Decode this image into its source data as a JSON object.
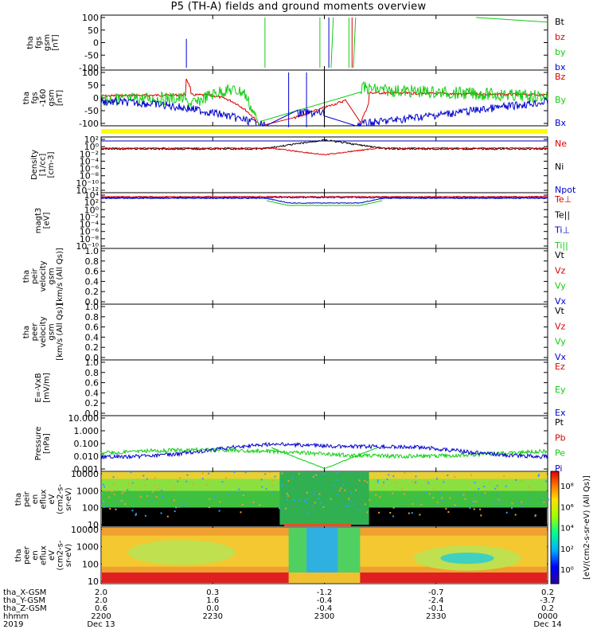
{
  "title": "P5 (TH-A) fields and ground moments overview",
  "chart_data": {
    "type": "line",
    "panels": [
      {
        "ylabel": [
          "tha",
          "fgs",
          "gsm",
          "[nT]"
        ],
        "ticks": [
          "100",
          "50",
          "0",
          "-50",
          "-100"
        ],
        "ylim": [
          -100,
          100
        ],
        "legend": [
          {
            "text": "Bt",
            "color": "#000000"
          },
          {
            "text": "bz",
            "color": "#dd0000"
          },
          {
            "text": "by",
            "color": "#11cc11"
          },
          {
            "text": "bx",
            "color": "#0000cc"
          }
        ]
      },
      {
        "ylabel": [
          "tha",
          "fgs",
          "-160",
          "gsm",
          "[nT]"
        ],
        "ticks": [
          "100",
          "50",
          "0",
          "-50",
          "-100"
        ],
        "ylim": [
          -120,
          120
        ],
        "legend": [
          {
            "text": "Bz",
            "color": "#dd0000"
          },
          {
            "text": "By",
            "color": "#11cc11"
          },
          {
            "text": "Bx",
            "color": "#0000cc"
          }
        ]
      },
      {
        "ylabel": [
          "Density",
          "[1/cc]",
          "[cm-3]"
        ],
        "ticks": [
          "10²",
          "10⁰",
          "10⁻²",
          "10⁻⁴",
          "10⁻⁶",
          "10⁻⁸",
          "10⁻¹⁰",
          "10⁻¹²"
        ],
        "legend": [
          {
            "text": "Ne",
            "color": "#dd0000"
          },
          {
            "text": "Ni",
            "color": "#000000"
          },
          {
            "text": "Npot",
            "color": "#0000cc"
          }
        ]
      },
      {
        "ylabel": [
          "magt3",
          "[eV]"
        ],
        "ticks": [
          "10⁴",
          "10²",
          "10⁰",
          "10⁻²",
          "10⁻⁴",
          "10⁻⁶",
          "10⁻⁸",
          "10⁻¹⁰"
        ],
        "legend": [
          {
            "text": "Te⊥",
            "color": "#dd0000"
          },
          {
            "text": "Te||",
            "color": "#000000"
          },
          {
            "text": "Ti⊥",
            "color": "#0000cc"
          },
          {
            "text": "Ti||",
            "color": "#11cc11"
          }
        ]
      },
      {
        "ylabel": [
          "tha",
          "peir",
          "velocity",
          "gsm",
          "[km/s (All Qs)]"
        ],
        "ticks": [
          "1.0",
          "0.8",
          "0.6",
          "0.4",
          "0.2",
          "0.0"
        ],
        "ylim": [
          0,
          1
        ],
        "legend": [
          {
            "text": "Vt",
            "color": "#000000"
          },
          {
            "text": "Vz",
            "color": "#dd0000"
          },
          {
            "text": "Vy",
            "color": "#11cc11"
          },
          {
            "text": "Vx",
            "color": "#0000cc"
          }
        ]
      },
      {
        "ylabel": [
          "tha",
          "peer",
          "velocity",
          "gsm",
          "[km/s (All Qs)]"
        ],
        "ticks": [
          "1.0",
          "0.8",
          "0.6",
          "0.4",
          "0.2",
          "0.0"
        ],
        "ylim": [
          0,
          1
        ],
        "legend": [
          {
            "text": "Vt",
            "color": "#000000"
          },
          {
            "text": "Vz",
            "color": "#dd0000"
          },
          {
            "text": "Vy",
            "color": "#11cc11"
          },
          {
            "text": "Vx",
            "color": "#0000cc"
          }
        ]
      },
      {
        "ylabel": [
          "E=-VxB",
          "[mV/m]"
        ],
        "ticks": [
          "1.0",
          "0.8",
          "0.6",
          "0.4",
          "0.2",
          "0.0"
        ],
        "ylim": [
          0,
          1
        ],
        "legend": [
          {
            "text": "Ez",
            "color": "#dd0000"
          },
          {
            "text": "Ey",
            "color": "#11cc11"
          },
          {
            "text": "Ex",
            "color": "#0000cc"
          }
        ]
      },
      {
        "ylabel": [
          "Pressure",
          "[nPa]"
        ],
        "ticks": [
          "10.000",
          "1.000",
          "0.100",
          "0.010",
          "0.001"
        ],
        "legend": [
          {
            "text": "Pt",
            "color": "#000000"
          },
          {
            "text": "Pb",
            "color": "#dd0000"
          },
          {
            "text": "Pe",
            "color": "#11cc11"
          },
          {
            "text": "Pi",
            "color": "#0000cc"
          }
        ]
      },
      {
        "ylabel": [
          "tha",
          "peir",
          "en",
          "eflux",
          "eV",
          "(cm2-s-",
          "sr-eV)"
        ],
        "ticks": [
          "10000",
          "1000",
          "100",
          "10"
        ]
      },
      {
        "ylabel": [
          "tha",
          "peer",
          "en",
          "eflux",
          "eV",
          "(cm2-s-",
          "sr-eV)"
        ],
        "ticks": [
          "10000",
          "1000",
          "100",
          "10"
        ]
      }
    ],
    "colorbar": {
      "label": "[eV/(cm2-s-sr-eV) (All Qs)]",
      "ticks": [
        "10⁸",
        "10⁶",
        "10⁴",
        "10²",
        "10⁰"
      ]
    },
    "xaxis": {
      "row_labels": [
        "tha_X-GSM",
        "tha_Y-GSM",
        "tha_Z-GSM",
        "hhmm",
        "2019"
      ],
      "columns": [
        {
          "values": [
            "2.0",
            "2.0",
            "0.6",
            "2200",
            "Dec 13"
          ]
        },
        {
          "values": [
            "0.3",
            "1.6",
            "0.0",
            "2230",
            ""
          ]
        },
        {
          "values": [
            "-1.2",
            "-0.4",
            "-0.4",
            "2300",
            ""
          ]
        },
        {
          "values": [
            "-0.7",
            "-2.4",
            "-0.1",
            "2330",
            ""
          ]
        },
        {
          "values": [
            "0.2",
            "-3.7",
            "0.2",
            "0000",
            "Dec 14"
          ]
        }
      ]
    }
  }
}
